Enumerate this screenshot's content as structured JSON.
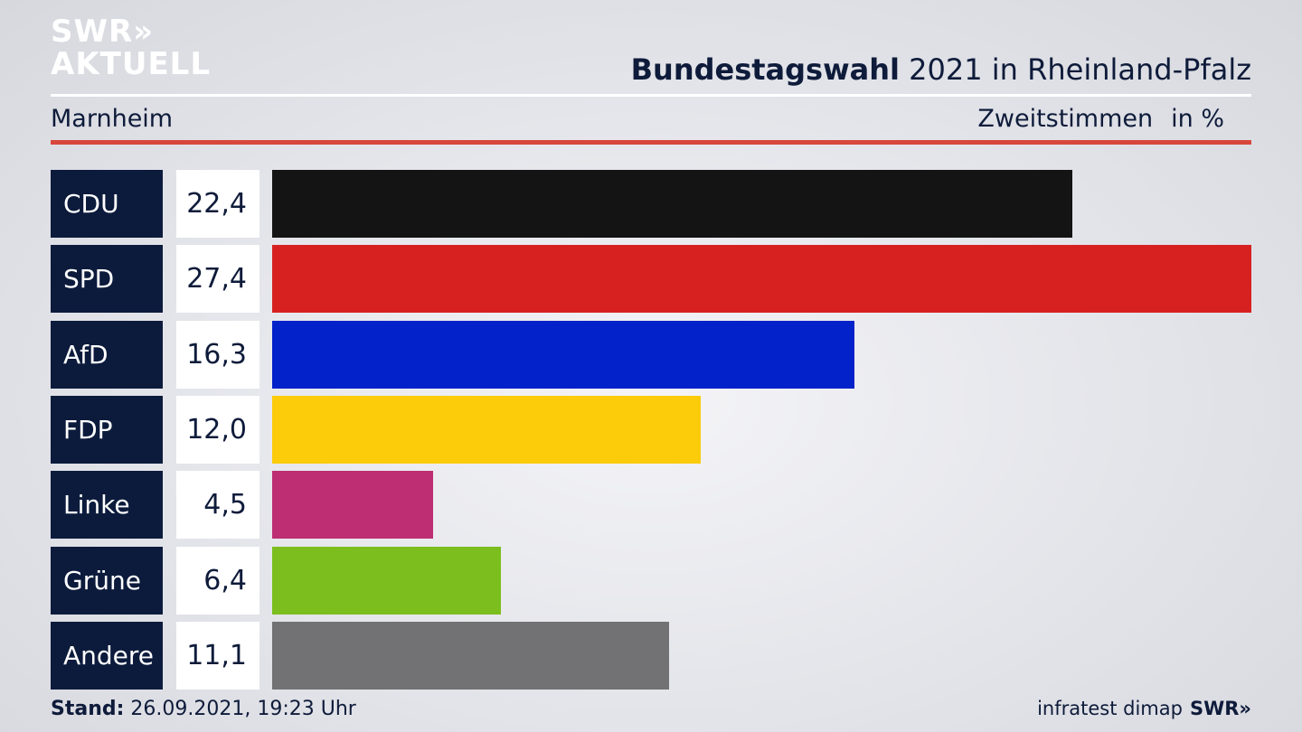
{
  "header": {
    "logo_line1": "SWR»",
    "logo_line2": "AKTUELL",
    "title_bold": "Bundestagswahl",
    "title_rest": " 2021 in Rheinland-Pfalz",
    "region": "Marnheim",
    "vote_type": "Zweitstimmen",
    "unit": "in %"
  },
  "chart_data": {
    "type": "bar",
    "orientation": "horizontal",
    "categories": [
      "CDU",
      "SPD",
      "AfD",
      "FDP",
      "Linke",
      "Grüne",
      "Andere"
    ],
    "values": [
      22.4,
      27.4,
      16.3,
      12.0,
      4.5,
      6.4,
      11.1
    ],
    "value_labels": [
      "22,4",
      "27,4",
      "16,3",
      "12,0",
      "4,5",
      "6,4",
      "11,1"
    ],
    "colors": [
      "#141414",
      "#d72121",
      "#0322c9",
      "#fccb0a",
      "#be2e72",
      "#7bbe1d",
      "#727274"
    ],
    "xlim": [
      0,
      27.4
    ],
    "grid": false
  },
  "footer": {
    "stand_label": "Stand:",
    "stand_value": " 26.09.2021, 19:23 Uhr",
    "source": "infratest dimap",
    "brand": "SWR»"
  }
}
